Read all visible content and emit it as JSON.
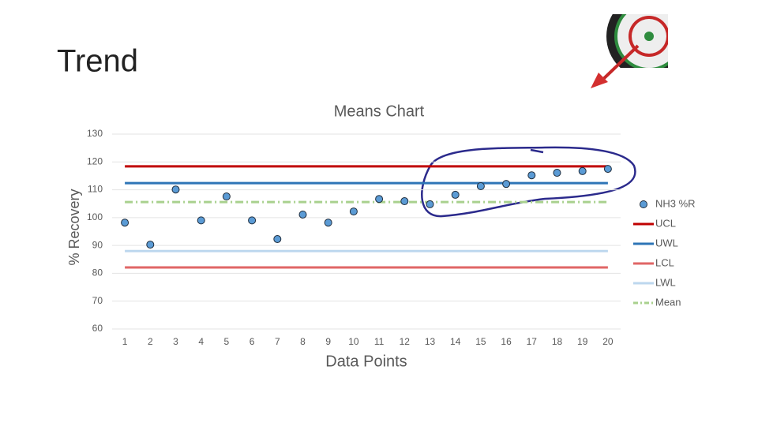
{
  "slide_title": "Trend",
  "chart_data": {
    "type": "line",
    "title": "Means Chart",
    "x_label": "Data Points",
    "y_label": "% Recovery",
    "categories": [
      "1",
      "2",
      "3",
      "4",
      "5",
      "6",
      "7",
      "8",
      "9",
      "10",
      "11",
      "12",
      "13",
      "14",
      "15",
      "16",
      "17",
      "18",
      "19",
      "20"
    ],
    "ylim": [
      60,
      130
    ],
    "yticks": [
      60,
      70,
      80,
      90,
      100,
      110,
      120,
      130
    ],
    "grid": true,
    "legend": "right",
    "series": [
      {
        "name": "NH3 %R",
        "color": "#5b9bd5",
        "mode": "markers",
        "values": [
          98.2,
          90.3,
          110.1,
          99,
          107.6,
          99,
          92.3,
          101.1,
          98.2,
          102.2,
          106.7,
          105.9,
          104.8,
          108.2,
          111.3,
          112.1,
          115.2,
          116.1,
          116.7,
          117.5
        ]
      },
      {
        "name": "UCL",
        "color": "#c00000",
        "mode": "line",
        "values": [
          118.4,
          118.4,
          118.4,
          118.4,
          118.4,
          118.4,
          118.4,
          118.4,
          118.4,
          118.4,
          118.4,
          118.4,
          118.4,
          118.4,
          118.4,
          118.4,
          118.4,
          118.4,
          118.4,
          118.4
        ]
      },
      {
        "name": "UWL",
        "color": "#2e75b6",
        "mode": "line",
        "values": [
          112.4,
          112.4,
          112.4,
          112.4,
          112.4,
          112.4,
          112.4,
          112.4,
          112.4,
          112.4,
          112.4,
          112.4,
          112.4,
          112.4,
          112.4,
          112.4,
          112.4,
          112.4,
          112.4,
          112.4
        ]
      },
      {
        "name": "LCL",
        "color": "#e06666",
        "mode": "line",
        "values": [
          82.1,
          82.1,
          82.1,
          82.1,
          82.1,
          82.1,
          82.1,
          82.1,
          82.1,
          82.1,
          82.1,
          82.1,
          82.1,
          82.1,
          82.1,
          82.1,
          82.1,
          82.1,
          82.1,
          82.1
        ]
      },
      {
        "name": "LWL",
        "color": "#bdd7ee",
        "mode": "line",
        "values": [
          88,
          88,
          88,
          88,
          88,
          88,
          88,
          88,
          88,
          88,
          88,
          88,
          88,
          88,
          88,
          88,
          88,
          88,
          88,
          88
        ]
      },
      {
        "name": "Mean",
        "color": "#a9d18e",
        "mode": "dashdot",
        "values": [
          105.6,
          105.6,
          105.6,
          105.6,
          105.6,
          105.6,
          105.6,
          105.6,
          105.6,
          105.6,
          105.6,
          105.6,
          105.6,
          105.6,
          105.6,
          105.6,
          105.6,
          105.6,
          105.6,
          105.6
        ]
      }
    ]
  }
}
